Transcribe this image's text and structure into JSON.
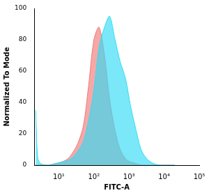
{
  "chart_data": {
    "type": "area",
    "x_label": "FITC-A",
    "y_label": "Normalized To Mode",
    "x": [
      2.2,
      2.5,
      3,
      5,
      8,
      12,
      18,
      25,
      35,
      50,
      70,
      100,
      140,
      200,
      280,
      400,
      560,
      800,
      1100,
      1600,
      2200,
      3200,
      5000,
      8000,
      12000,
      20000
    ],
    "series": [
      {
        "color": "#33dcf5",
        "values": [
          35,
          5,
          1,
          0,
          1,
          2,
          3,
          5,
          9,
          15,
          28,
          48,
          75,
          88,
          95,
          80,
          66,
          55,
          38,
          22,
          10,
          4,
          1,
          0,
          0,
          0
        ]
      },
      {
        "color": "#f07a7a",
        "values": [
          0,
          0,
          0,
          0,
          1,
          2,
          4,
          8,
          14,
          25,
          50,
          80,
          88,
          70,
          42,
          22,
          10,
          4,
          2,
          1,
          0,
          0,
          0,
          0,
          0,
          0
        ]
      }
    ],
    "log": "x",
    "xlim": [
      2,
      100000
    ],
    "xticks": [
      {
        "value": 10,
        "label": "10¹"
      },
      {
        "value": 100,
        "label": "10²"
      },
      {
        "value": 1000,
        "label": "10³"
      },
      {
        "value": 10000,
        "label": "10⁴"
      },
      {
        "value": 100000,
        "label": "10⁵"
      }
    ],
    "ylim": [
      0,
      100
    ],
    "yticks": [
      0,
      20,
      40,
      60,
      80,
      100
    ],
    "grid": false
  }
}
